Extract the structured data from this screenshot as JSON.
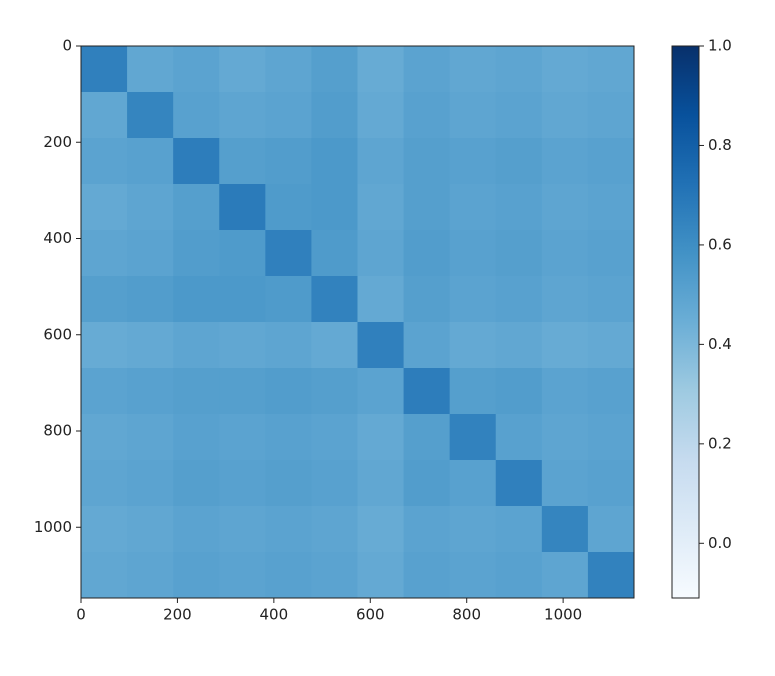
{
  "chart_data": {
    "type": "heatmap",
    "colormap": "Blues",
    "xlim": [
      0,
      1147
    ],
    "xticks": [
      0,
      200,
      400,
      600,
      800,
      1000
    ],
    "ylim": [
      1147,
      0
    ],
    "yticks": [
      0,
      200,
      400,
      600,
      800,
      1000
    ],
    "z": [
      [
        0.66,
        0.48,
        0.5,
        0.47,
        0.49,
        0.52,
        0.46,
        0.5,
        0.48,
        0.49,
        0.47,
        0.48
      ],
      [
        0.48,
        0.64,
        0.51,
        0.49,
        0.5,
        0.53,
        0.47,
        0.51,
        0.49,
        0.5,
        0.48,
        0.49
      ],
      [
        0.5,
        0.51,
        0.67,
        0.52,
        0.53,
        0.55,
        0.49,
        0.52,
        0.51,
        0.52,
        0.5,
        0.51
      ],
      [
        0.47,
        0.49,
        0.52,
        0.68,
        0.54,
        0.55,
        0.48,
        0.52,
        0.5,
        0.51,
        0.49,
        0.5
      ],
      [
        0.49,
        0.5,
        0.53,
        0.54,
        0.66,
        0.54,
        0.49,
        0.53,
        0.51,
        0.52,
        0.5,
        0.51
      ],
      [
        0.52,
        0.53,
        0.55,
        0.55,
        0.54,
        0.65,
        0.47,
        0.52,
        0.5,
        0.51,
        0.49,
        0.5
      ],
      [
        0.46,
        0.47,
        0.49,
        0.48,
        0.49,
        0.47,
        0.66,
        0.5,
        0.47,
        0.48,
        0.46,
        0.47
      ],
      [
        0.5,
        0.51,
        0.52,
        0.52,
        0.53,
        0.52,
        0.5,
        0.67,
        0.52,
        0.53,
        0.5,
        0.51
      ],
      [
        0.48,
        0.49,
        0.51,
        0.5,
        0.51,
        0.5,
        0.47,
        0.52,
        0.65,
        0.51,
        0.49,
        0.5
      ],
      [
        0.49,
        0.5,
        0.52,
        0.51,
        0.52,
        0.51,
        0.48,
        0.53,
        0.51,
        0.66,
        0.5,
        0.51
      ],
      [
        0.47,
        0.48,
        0.5,
        0.49,
        0.5,
        0.49,
        0.46,
        0.5,
        0.49,
        0.5,
        0.64,
        0.49
      ],
      [
        0.48,
        0.49,
        0.51,
        0.5,
        0.51,
        0.5,
        0.47,
        0.51,
        0.5,
        0.51,
        0.49,
        0.65
      ]
    ],
    "colorbar": {
      "lim": [
        -0.11,
        1.0
      ],
      "ticks": [
        {
          "value": 0,
          "label": "0.0"
        },
        0.2,
        0.4,
        0.6,
        0.8,
        {
          "value": 1,
          "label": "1.0"
        }
      ]
    }
  }
}
